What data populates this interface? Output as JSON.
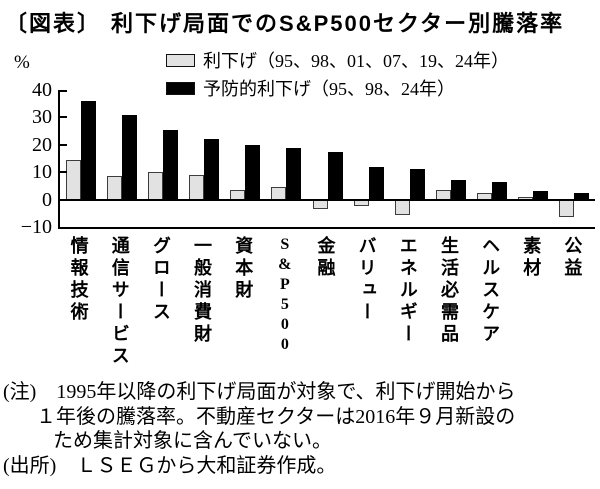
{
  "header": {
    "prefix": "〔図表〕",
    "title": "利下げ局面でのS&P500セクター別騰落率"
  },
  "chart_data": {
    "type": "bar",
    "title": "利下げ局面でのS&P500セクター別騰落率",
    "unit": "%",
    "categories": [
      "情報技術",
      "通信サービス",
      "グロース",
      "一般消費財",
      "資本財",
      "S&P500",
      "金融",
      "バリュー",
      "エネルギー",
      "生活必需品",
      "ヘルスケア",
      "素材",
      "公益"
    ],
    "series": [
      {
        "name": "利下げ（95、98、01、07、19、24年）",
        "color": "#e2e2e2",
        "values": [
          14.5,
          8.5,
          10,
          9,
          3.5,
          4.5,
          -3.5,
          -2.5,
          -5.5,
          3.5,
          2.5,
          1,
          -6.5
        ]
      },
      {
        "name": "予防的利下げ（95、98、24年）",
        "color": "#000000",
        "values": [
          36,
          31,
          25.5,
          22,
          20,
          19,
          17.5,
          12,
          11,
          7,
          6.5,
          3,
          2.5
        ]
      }
    ],
    "ylim": [
      -10,
      40
    ],
    "yticks": [
      {
        "v": 40,
        "label": "40"
      },
      {
        "v": 30,
        "label": "30"
      },
      {
        "v": 20,
        "label": "20"
      },
      {
        "v": 10,
        "label": "10"
      },
      {
        "v": 0,
        "label": "0"
      },
      {
        "v": -10,
        "label": "−10"
      }
    ],
    "grid": false,
    "legend_position": "top"
  },
  "notes": {
    "lines": [
      "(注)　1995年以降の利下げ局面が対象で、利下げ開始から",
      "１年後の騰落率。不動産セクターは2016年９月新設の",
      "ため集計対象に含んでいない。",
      "(出所)　ＬＳＥＧから大和証券作成。"
    ]
  }
}
